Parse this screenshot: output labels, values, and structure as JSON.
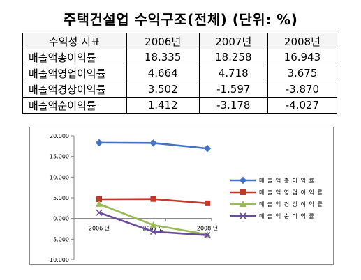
{
  "title": "주택건설업 수익구조(전체) (단위: %)",
  "table": {
    "headers": [
      "수익성 지표",
      "2006년",
      "2007년",
      "2008년"
    ],
    "rows": [
      [
        "매출액총이익률",
        "18.335",
        "18.258",
        "16.943"
      ],
      [
        "매출액영업이익률",
        "4.664",
        "4.718",
        "3.675"
      ],
      [
        "매출액경상이익률",
        "3.502",
        "-1.597",
        "-3.870"
      ],
      [
        "매출액순이익률",
        "1.412",
        "-3.178",
        "-4.027"
      ]
    ]
  },
  "chart_data": {
    "type": "line",
    "title": "",
    "xlabel": "",
    "ylabel": "",
    "categories": [
      "2006 년",
      "2007 년",
      "2008 년"
    ],
    "ylim": [
      -10,
      20
    ],
    "yticks": [
      "20.000",
      "15.000",
      "10.000",
      "5.000",
      "0.000",
      "-5.000",
      "-10.000"
    ],
    "legend_position": "right",
    "series": [
      {
        "name": "매 출 액 총 이 익 률",
        "values": [
          18.335,
          18.258,
          16.943
        ],
        "color": "#4472c4",
        "marker": "diamond"
      },
      {
        "name": "매 출 액 영 업 이 익 률",
        "values": [
          4.664,
          4.718,
          3.675
        ],
        "color": "#c0392b",
        "marker": "square"
      },
      {
        "name": "매 출 액 경 상 이 익 률",
        "values": [
          3.502,
          -1.597,
          -3.87
        ],
        "color": "#9bbb59",
        "marker": "triangle"
      },
      {
        "name": "매 출 액 순 이 익 률",
        "values": [
          1.412,
          -3.178,
          -4.027
        ],
        "color": "#6a4c9c",
        "marker": "x"
      }
    ]
  }
}
